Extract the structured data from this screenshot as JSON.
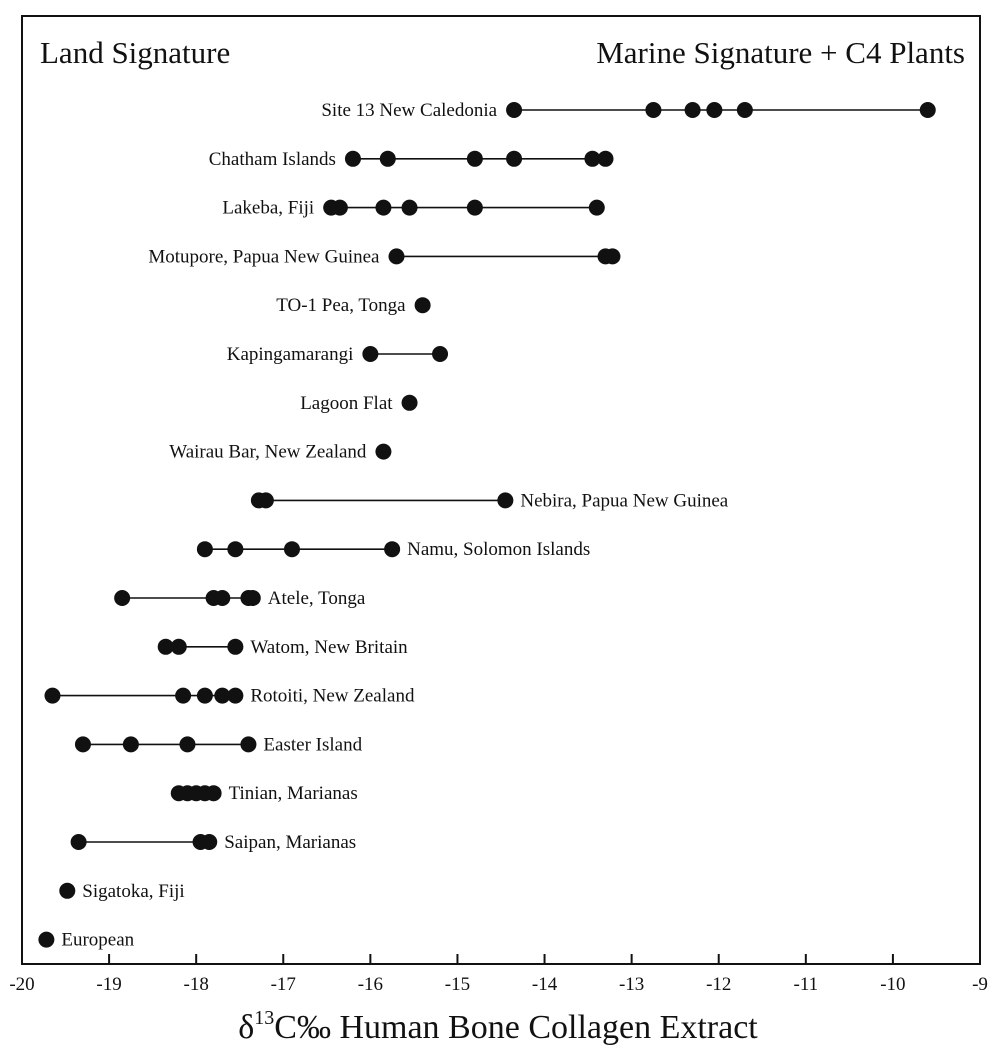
{
  "chart_data": {
    "type": "scatter",
    "annotations": {
      "left": "Land Signature",
      "right": "Marine Signature + C4 Plants"
    },
    "xlabel": {
      "delta": "δ",
      "superscript": "13",
      "rest": "C‰ Human Bone Collagen Extract"
    },
    "xlim": [
      -20,
      -9
    ],
    "xticks": [
      "-20",
      "-19",
      "-18",
      "-17",
      "-16",
      "-15",
      "-14",
      "-13",
      "-12",
      "-11",
      "-10",
      "-9"
    ],
    "grid": false,
    "legend": "none",
    "series": [
      {
        "name": "Site 13 New Caledonia",
        "label_side": "left",
        "values": [
          -14.35,
          -12.75,
          -12.3,
          -12.05,
          -11.7,
          -9.6
        ]
      },
      {
        "name": "Chatham Islands",
        "label_side": "left",
        "values": [
          -16.2,
          -15.8,
          -14.8,
          -14.35,
          -13.45,
          -13.3
        ]
      },
      {
        "name": "Lakeba, Fiji",
        "label_side": "left",
        "values": [
          -16.45,
          -16.35,
          -15.85,
          -15.55,
          -14.8,
          -13.4
        ]
      },
      {
        "name": "Motupore, Papua New Guinea",
        "label_side": "left",
        "values": [
          -15.7,
          -13.3,
          -13.22
        ]
      },
      {
        "name": "TO-1 Pea, Tonga",
        "label_side": "left",
        "values": [
          -15.4
        ]
      },
      {
        "name": "Kapingamarangi",
        "label_side": "left",
        "values": [
          -16.0,
          -15.2
        ]
      },
      {
        "name": "Lagoon Flat",
        "label_side": "left",
        "values": [
          -15.55
        ]
      },
      {
        "name": "Wairau Bar, New Zealand",
        "label_side": "left",
        "values": [
          -15.85
        ]
      },
      {
        "name": "Nebira, Papua New Guinea",
        "label_side": "right",
        "values": [
          -17.28,
          -17.2,
          -14.45
        ]
      },
      {
        "name": "Namu, Solomon Islands",
        "label_side": "right",
        "values": [
          -17.9,
          -17.55,
          -16.9,
          -15.75
        ]
      },
      {
        "name": "Atele, Tonga",
        "label_side": "right",
        "values": [
          -18.85,
          -17.8,
          -17.7,
          -17.4,
          -17.35
        ]
      },
      {
        "name": "Watom, New Britain",
        "label_side": "right",
        "values": [
          -18.35,
          -18.2,
          -17.55
        ]
      },
      {
        "name": "Rotoiti, New Zealand",
        "label_side": "right",
        "values": [
          -19.65,
          -18.15,
          -17.9,
          -17.7,
          -17.55
        ]
      },
      {
        "name": "Easter Island",
        "label_side": "right",
        "values": [
          -19.3,
          -18.75,
          -18.1,
          -17.4
        ]
      },
      {
        "name": "Tinian, Marianas",
        "label_side": "right",
        "values": [
          -18.2,
          -18.1,
          -18.0,
          -17.9,
          -17.8
        ]
      },
      {
        "name": "Saipan, Marianas",
        "label_side": "right",
        "values": [
          -19.35,
          -17.95,
          -17.85
        ]
      },
      {
        "name": "Sigatoka, Fiji",
        "label_side": "right",
        "values": [
          -19.48
        ]
      },
      {
        "name": "European",
        "label_side": "right",
        "values": [
          -19.72
        ]
      }
    ]
  }
}
